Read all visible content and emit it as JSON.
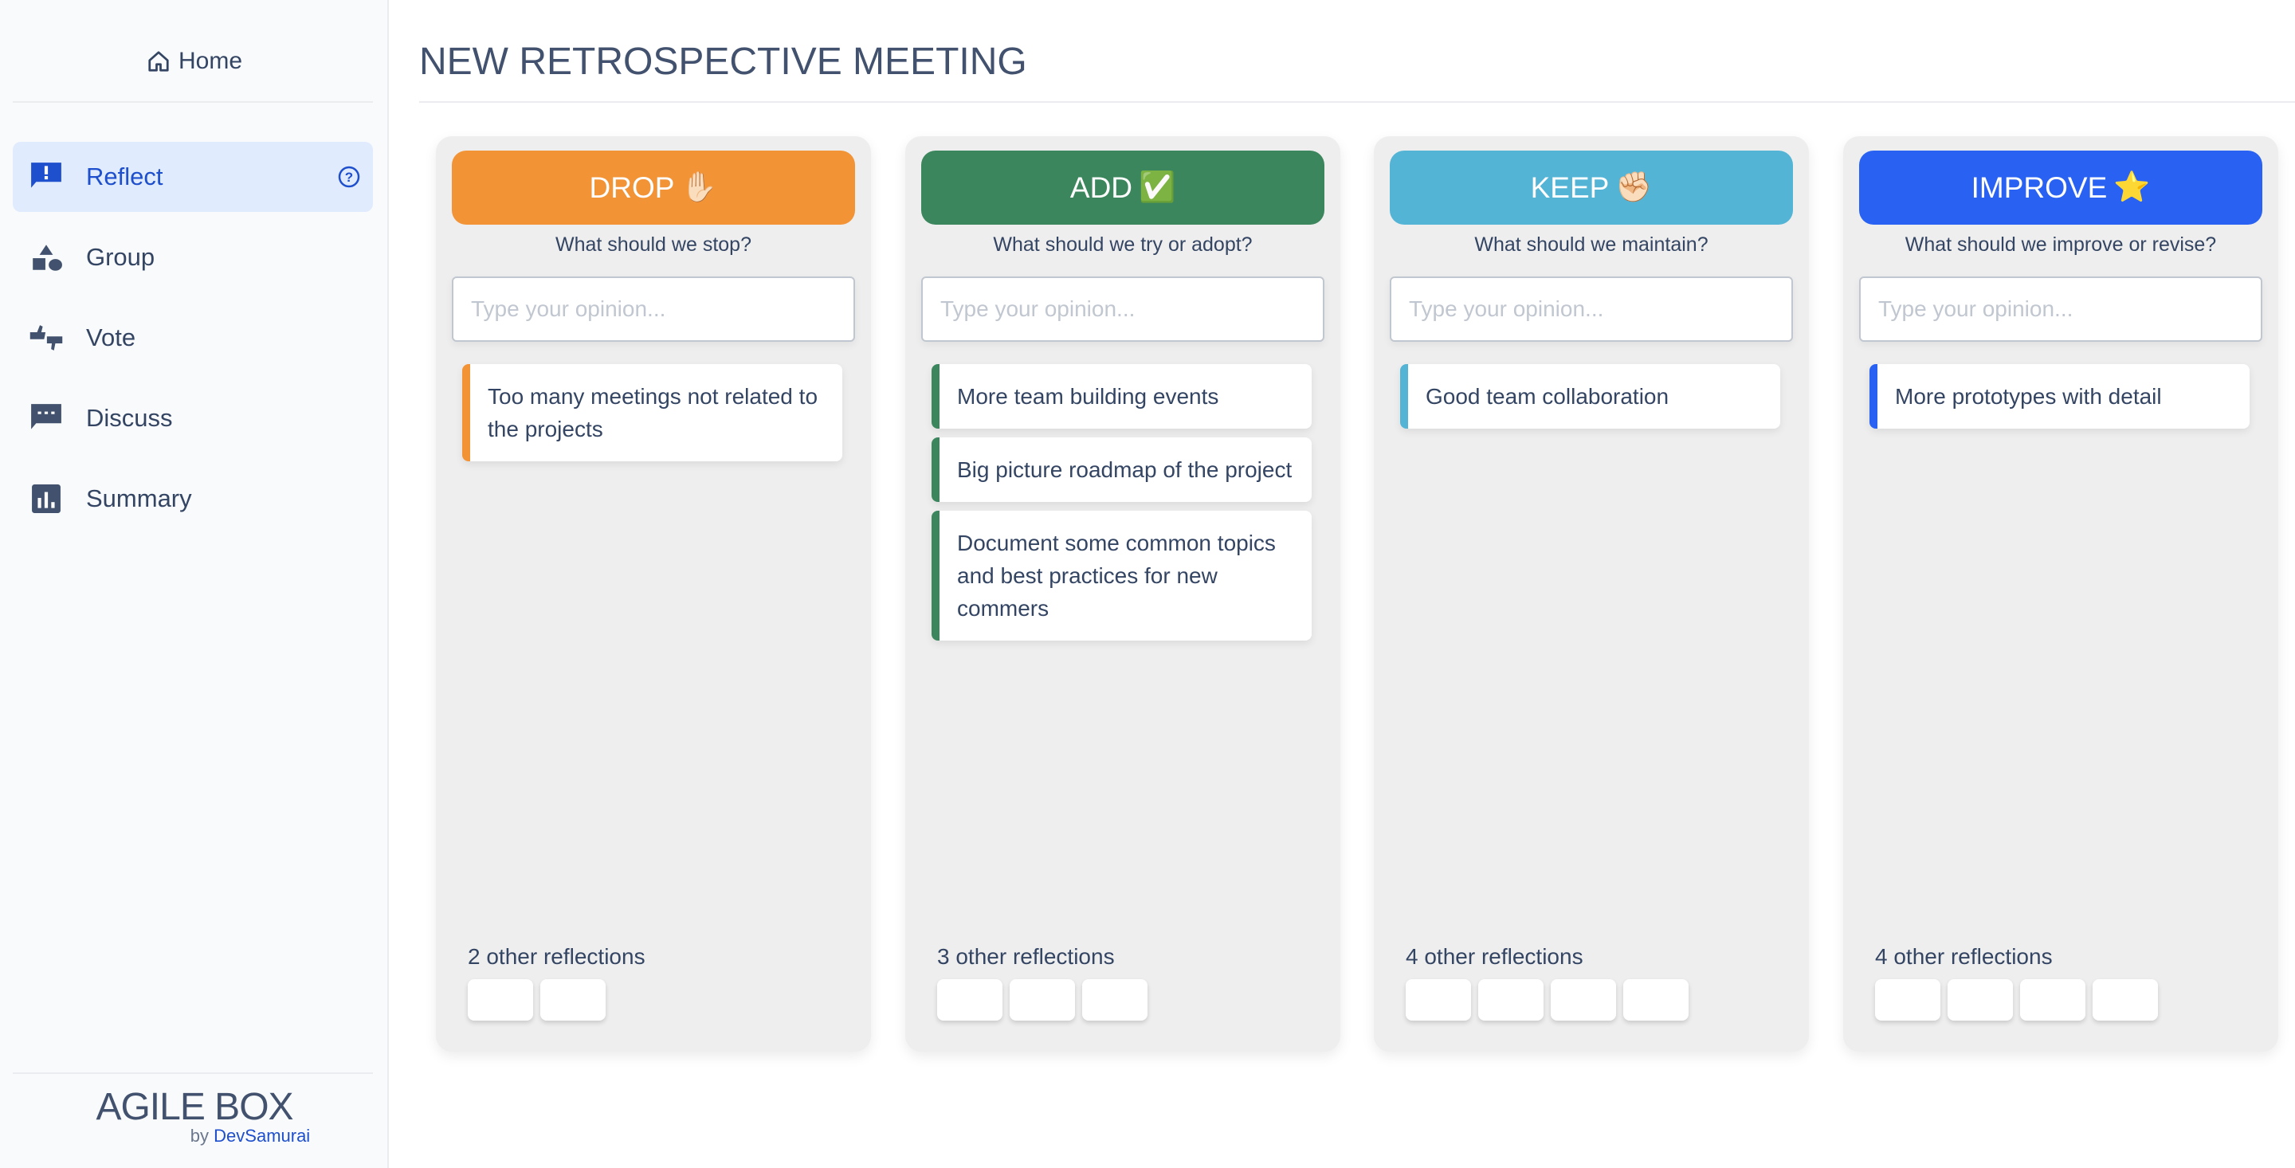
{
  "sidebar": {
    "home": "Home",
    "items": [
      {
        "label": "Reflect",
        "icon": "exclamation-bubble-icon",
        "active": true
      },
      {
        "label": "Group",
        "icon": "shapes-icon"
      },
      {
        "label": "Vote",
        "icon": "thumbs-up-down-icon"
      },
      {
        "label": "Discuss",
        "icon": "chat-dots-icon"
      },
      {
        "label": "Summary",
        "icon": "bar-chart-icon"
      }
    ],
    "brand": "AGILE BOX",
    "by": "by",
    "company": "DevSamurai"
  },
  "page": {
    "title": "NEW RETROSPECTIVE MEETING"
  },
  "columns": [
    {
      "title": "DROP",
      "emoji": "✋🏻",
      "color": "#f29336",
      "subtitle": "What should we stop?",
      "placeholder": "Type your opinion...",
      "cards": [
        "Too many meetings not related to the projects"
      ],
      "other": "2 other reflections",
      "chips": 2
    },
    {
      "title": "ADD",
      "emoji": "✅",
      "color": "#3b865d",
      "subtitle": "What should we try or adopt?",
      "placeholder": "Type your opinion...",
      "cards": [
        "More team building events",
        "Big picture roadmap of the project",
        "Document some common topics and best practices for new commers"
      ],
      "other": "3 other reflections",
      "chips": 3
    },
    {
      "title": "KEEP",
      "emoji": "✊🏻",
      "color": "#54b4d6",
      "subtitle": "What should we maintain?",
      "placeholder": "Type your opinion...",
      "cards": [
        "Good team collaboration"
      ],
      "other": "4 other reflections",
      "chips": 4
    },
    {
      "title": "IMPROVE",
      "emoji": "⭐",
      "color": "#2962f2",
      "subtitle": "What should we improve or revise?",
      "placeholder": "Type your opinion...",
      "cards": [
        "More prototypes with detail"
      ],
      "other": "4 other reflections",
      "chips": 4
    }
  ]
}
